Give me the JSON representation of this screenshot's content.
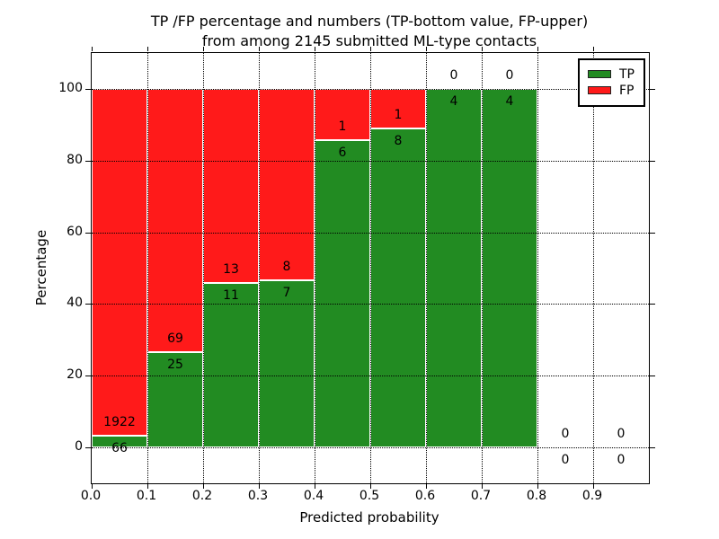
{
  "figure": {
    "title_line1": "TP /FP percentage and numbers (TP-bottom value, FP-upper)",
    "title_line2": "from among 2145 submitted ML-type contacts"
  },
  "chart_data": {
    "type": "bar",
    "stacked": true,
    "values_normalized_to_percent": true,
    "title": "TP /FP percentage and numbers (TP-bottom value, FP-upper)\nfrom among 2145 submitted ML-type contacts",
    "xlabel": "Predicted probability",
    "ylabel": "Percentage",
    "total_submitted_contacts": 2145,
    "bin_starts": [
      0.0,
      0.1,
      0.2,
      0.3,
      0.4,
      0.5,
      0.6,
      0.7,
      0.8,
      0.9
    ],
    "bin_width": 0.1,
    "x_tick_labels": [
      "0.0",
      "0.1",
      "0.2",
      "0.3",
      "0.4",
      "0.5",
      "0.6",
      "0.7",
      "0.8",
      "0.9"
    ],
    "y_tick_labels": [
      "0",
      "20",
      "40",
      "60",
      "80",
      "100"
    ],
    "y_tick_values": [
      0,
      20,
      40,
      60,
      80,
      100
    ],
    "xlim": [
      0.0,
      1.0
    ],
    "ylim": [
      -10,
      110
    ],
    "grid_style": "dotted",
    "legend_position": "upper right",
    "series": [
      {
        "name": "TP",
        "color": "#228b22",
        "values": [
          66,
          25,
          11,
          7,
          6,
          8,
          4,
          4,
          0,
          0
        ]
      },
      {
        "name": "FP",
        "color": "#ff1a1a",
        "values": [
          1922,
          69,
          13,
          8,
          1,
          1,
          0,
          0,
          0,
          0
        ]
      }
    ]
  },
  "colors": {
    "tp_green": "#228b22",
    "fp_red": "#ff1a1a",
    "grid": "#000000",
    "background": "#ffffff"
  }
}
